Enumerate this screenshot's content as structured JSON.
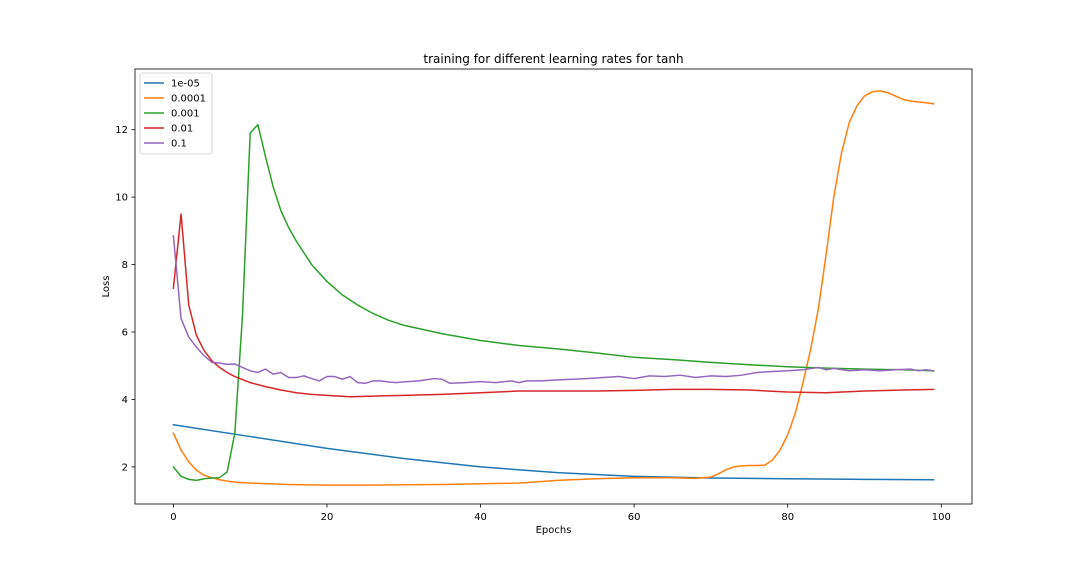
{
  "chart_data": {
    "type": "line",
    "title": "training for different learning rates for tanh",
    "xlabel": "Epochs",
    "ylabel": "Loss",
    "xlim": [
      -5,
      104
    ],
    "ylim": [
      0.9,
      13.8
    ],
    "xticks": [
      0,
      20,
      40,
      60,
      80,
      100
    ],
    "yticks": [
      2,
      4,
      6,
      8,
      10,
      12
    ],
    "legend_position": "upper-left",
    "grid": false,
    "series": [
      {
        "name": "1e-05",
        "color": "#1f77b4",
        "x": [
          0,
          10,
          20,
          30,
          40,
          50,
          60,
          70,
          80,
          90,
          99
        ],
        "y": [
          3.25,
          2.9,
          2.55,
          2.25,
          2.0,
          1.83,
          1.72,
          1.67,
          1.65,
          1.63,
          1.62
        ]
      },
      {
        "name": "0.0001",
        "color": "#ff7f0e",
        "x": [
          0,
          1,
          2,
          3,
          4,
          5,
          6,
          7,
          8,
          10,
          15,
          20,
          25,
          30,
          35,
          40,
          45,
          50,
          55,
          60,
          65,
          68,
          70,
          71,
          72,
          73,
          74,
          75,
          76,
          77,
          78,
          79,
          80,
          81,
          82,
          83,
          84,
          85,
          86,
          87,
          88,
          89,
          90,
          91,
          92,
          93,
          94,
          95,
          96,
          97,
          98,
          99
        ],
        "y": [
          3.0,
          2.5,
          2.15,
          1.9,
          1.75,
          1.68,
          1.62,
          1.58,
          1.55,
          1.52,
          1.48,
          1.46,
          1.46,
          1.47,
          1.48,
          1.5,
          1.52,
          1.6,
          1.65,
          1.68,
          1.68,
          1.66,
          1.7,
          1.8,
          1.92,
          2.0,
          2.03,
          2.04,
          2.04,
          2.05,
          2.2,
          2.5,
          2.95,
          3.6,
          4.5,
          5.5,
          6.7,
          8.3,
          10.0,
          11.3,
          12.2,
          12.7,
          13.0,
          13.12,
          13.15,
          13.1,
          13.0,
          12.9,
          12.85,
          12.82,
          12.8,
          12.77
        ]
      },
      {
        "name": "0.001",
        "color": "#2ca02c",
        "x": [
          0,
          1,
          2,
          3,
          4,
          5,
          6,
          7,
          8,
          9,
          10,
          11,
          12,
          13,
          14,
          15,
          16,
          18,
          20,
          22,
          24,
          26,
          28,
          30,
          35,
          40,
          45,
          50,
          55,
          60,
          65,
          70,
          75,
          80,
          85,
          90,
          95,
          99
        ],
        "y": [
          2.0,
          1.72,
          1.63,
          1.6,
          1.65,
          1.67,
          1.68,
          1.85,
          3.0,
          6.5,
          11.9,
          12.15,
          11.2,
          10.3,
          9.6,
          9.1,
          8.7,
          8.0,
          7.5,
          7.1,
          6.8,
          6.55,
          6.35,
          6.2,
          5.95,
          5.75,
          5.6,
          5.5,
          5.38,
          5.25,
          5.18,
          5.1,
          5.03,
          4.97,
          4.93,
          4.9,
          4.88,
          4.85
        ]
      },
      {
        "name": "0.01",
        "color": "#d62728",
        "x": [
          0,
          1,
          2,
          3,
          4,
          5,
          6,
          7,
          8,
          10,
          12,
          14,
          16,
          18,
          20,
          23,
          26,
          30,
          35,
          40,
          45,
          50,
          55,
          60,
          65,
          70,
          75,
          80,
          85,
          90,
          95,
          99
        ],
        "y": [
          7.3,
          9.5,
          6.8,
          5.9,
          5.45,
          5.15,
          4.95,
          4.8,
          4.68,
          4.5,
          4.38,
          4.28,
          4.2,
          4.15,
          4.12,
          4.08,
          4.1,
          4.12,
          4.15,
          4.2,
          4.25,
          4.25,
          4.25,
          4.27,
          4.3,
          4.3,
          4.28,
          4.22,
          4.2,
          4.25,
          4.28,
          4.3
        ]
      },
      {
        "name": "0.1",
        "color": "#9467bd",
        "x": [
          0,
          1,
          2,
          3,
          4,
          5,
          6,
          7,
          8,
          9,
          10,
          11,
          12,
          13,
          14,
          15,
          16,
          17,
          18,
          19,
          20,
          21,
          22,
          23,
          24,
          25,
          26,
          27,
          28,
          29,
          30,
          32,
          34,
          35,
          36,
          38,
          40,
          42,
          44,
          45,
          46,
          48,
          50,
          52,
          54,
          56,
          58,
          60,
          62,
          64,
          66,
          68,
          70,
          72,
          74,
          76,
          78,
          80,
          82,
          84,
          85,
          86,
          88,
          90,
          92,
          94,
          96,
          97,
          98,
          99
        ],
        "y": [
          8.85,
          6.4,
          5.85,
          5.55,
          5.3,
          5.1,
          5.08,
          5.04,
          5.05,
          4.95,
          4.85,
          4.8,
          4.9,
          4.75,
          4.8,
          4.65,
          4.65,
          4.7,
          4.62,
          4.55,
          4.68,
          4.68,
          4.6,
          4.68,
          4.5,
          4.48,
          4.55,
          4.55,
          4.52,
          4.5,
          4.52,
          4.55,
          4.62,
          4.6,
          4.48,
          4.5,
          4.53,
          4.5,
          4.55,
          4.5,
          4.55,
          4.55,
          4.58,
          4.6,
          4.62,
          4.65,
          4.68,
          4.62,
          4.7,
          4.68,
          4.72,
          4.65,
          4.7,
          4.68,
          4.72,
          4.8,
          4.83,
          4.85,
          4.88,
          4.95,
          4.88,
          4.92,
          4.85,
          4.88,
          4.85,
          4.88,
          4.9,
          4.85,
          4.88,
          4.85
        ]
      }
    ]
  }
}
